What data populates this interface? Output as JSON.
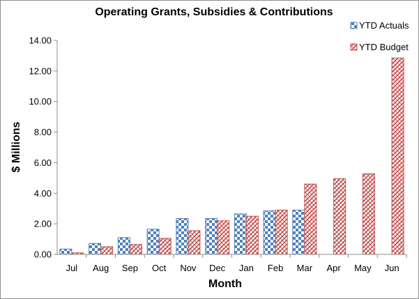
{
  "chart_data": {
    "type": "bar",
    "title": "Operating Grants, Subsidies & Contributions",
    "xlabel": "Month",
    "ylabel": "$ Millions",
    "ylim": [
      0,
      14
    ],
    "ytick_step": 2,
    "ytick_labels": [
      "0.00",
      "2.00",
      "4.00",
      "6.00",
      "8.00",
      "10.00",
      "12.00",
      "14.00"
    ],
    "categories": [
      "Jul",
      "Aug",
      "Sep",
      "Oct",
      "Nov",
      "Dec",
      "Jan",
      "Feb",
      "Mar",
      "Apr",
      "May",
      "Jun"
    ],
    "series": [
      {
        "name": "YTD Actuals",
        "color": "#4f81bd",
        "pattern": "checkerboard",
        "values": [
          0.35,
          0.72,
          1.1,
          1.65,
          2.35,
          2.35,
          2.65,
          2.85,
          2.9,
          null,
          null,
          null
        ]
      },
      {
        "name": "YTD Budget",
        "color": "#c0504d",
        "pattern": "diagonal-hatch",
        "values": [
          0.1,
          0.5,
          0.65,
          1.05,
          1.55,
          2.2,
          2.5,
          2.9,
          4.6,
          4.95,
          5.28,
          12.85
        ]
      }
    ],
    "grid": false,
    "legend_position": "top-right"
  }
}
